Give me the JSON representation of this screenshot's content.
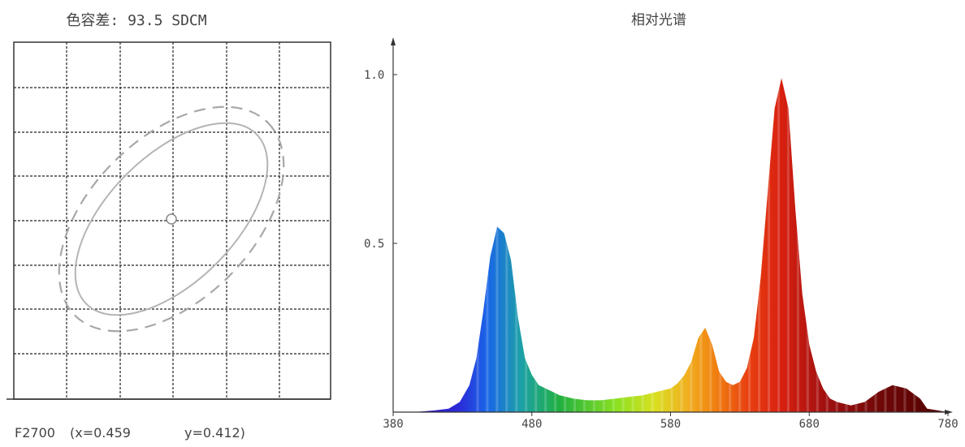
{
  "chart_data": [
    {
      "type": "ellipse-tolerance",
      "title": "色容差: 93.5 SDCM",
      "grid": true,
      "center_marker": true,
      "caption_prefix": "F2700",
      "x_text": "(x=0.459",
      "y_text": "y=0.412)",
      "x": 0.459,
      "y": 0.412
    },
    {
      "type": "area",
      "title": "相对光谱",
      "xlim": [
        380,
        780
      ],
      "ylim": [
        0,
        1.0
      ],
      "xticks": [
        "380",
        "480",
        "580",
        "680",
        "780"
      ],
      "yticks": [
        "0.5",
        "1.0"
      ],
      "x": [
        380,
        395,
        410,
        420,
        428,
        435,
        440,
        445,
        450,
        455,
        460,
        465,
        470,
        475,
        480,
        485,
        490,
        495,
        500,
        505,
        510,
        520,
        530,
        540,
        550,
        560,
        570,
        580,
        585,
        590,
        595,
        600,
        605,
        610,
        615,
        620,
        625,
        630,
        635,
        640,
        645,
        650,
        655,
        660,
        665,
        670,
        675,
        680,
        685,
        690,
        695,
        700,
        710,
        720,
        730,
        740,
        750,
        760,
        765,
        780
      ],
      "values": [
        0.0,
        0.0,
        0.005,
        0.01,
        0.03,
        0.08,
        0.16,
        0.3,
        0.46,
        0.55,
        0.53,
        0.45,
        0.28,
        0.16,
        0.11,
        0.08,
        0.07,
        0.06,
        0.05,
        0.045,
        0.04,
        0.035,
        0.035,
        0.04,
        0.045,
        0.05,
        0.06,
        0.07,
        0.085,
        0.11,
        0.15,
        0.22,
        0.25,
        0.2,
        0.12,
        0.09,
        0.08,
        0.09,
        0.13,
        0.22,
        0.4,
        0.65,
        0.9,
        0.99,
        0.9,
        0.6,
        0.35,
        0.2,
        0.12,
        0.07,
        0.04,
        0.03,
        0.02,
        0.03,
        0.06,
        0.08,
        0.07,
        0.04,
        0.01,
        0.0
      ]
    }
  ]
}
